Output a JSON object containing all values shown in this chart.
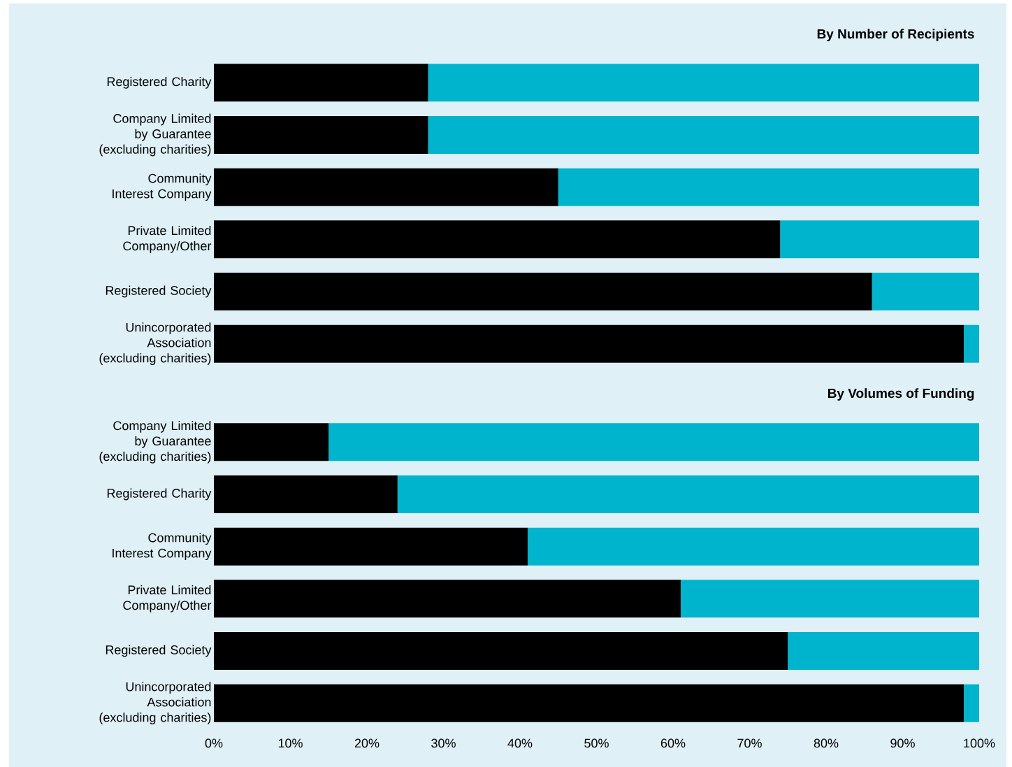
{
  "chart_data": [
    {
      "type": "bar",
      "orientation": "horizontal",
      "stacked": true,
      "title": "By Number of Recipients",
      "categories": [
        "Registered Charity",
        "Company Limited by Guarantee (excluding charities)",
        "Community Interest Company",
        "Private Limited Company/Other",
        "Registered Society",
        "Unincorporated Association (excluding charities)"
      ],
      "series": [
        {
          "color": "#000000",
          "values": [
            28,
            28,
            45,
            74,
            86,
            98
          ]
        },
        {
          "color": "#00b4ce",
          "values": [
            72,
            72,
            55,
            26,
            14,
            2
          ]
        }
      ],
      "xlim": [
        0,
        100
      ],
      "tick_labels": "y"
    },
    {
      "type": "bar",
      "orientation": "horizontal",
      "stacked": true,
      "title": "By Volumes of Funding",
      "categories": [
        "Company Limited by Guarantee (excluding charities)",
        "Registered Charity",
        "Community Interest Company",
        "Private Limited Company/Other",
        "Registered Society",
        "Unincorporated Association (excluding charities)"
      ],
      "series": [
        {
          "color": "#000000",
          "values": [
            15,
            24,
            41,
            61,
            75,
            98
          ]
        },
        {
          "color": "#00b4ce",
          "values": [
            85,
            76,
            59,
            39,
            25,
            2
          ]
        }
      ],
      "xlim": [
        0,
        100
      ],
      "xticks": [
        {
          "value": 0,
          "label": "0%"
        },
        {
          "value": 10,
          "label": "10%"
        },
        {
          "value": 20,
          "label": "20%"
        },
        {
          "value": 30,
          "label": "30%"
        },
        {
          "value": 40,
          "label": "40%"
        },
        {
          "value": 50,
          "label": "50%"
        },
        {
          "value": 60,
          "label": "60%"
        },
        {
          "value": 70,
          "label": "70%"
        },
        {
          "value": 80,
          "label": "80%"
        },
        {
          "value": 90,
          "label": "90%"
        },
        {
          "value": 100,
          "label": "100%"
        }
      ]
    }
  ]
}
